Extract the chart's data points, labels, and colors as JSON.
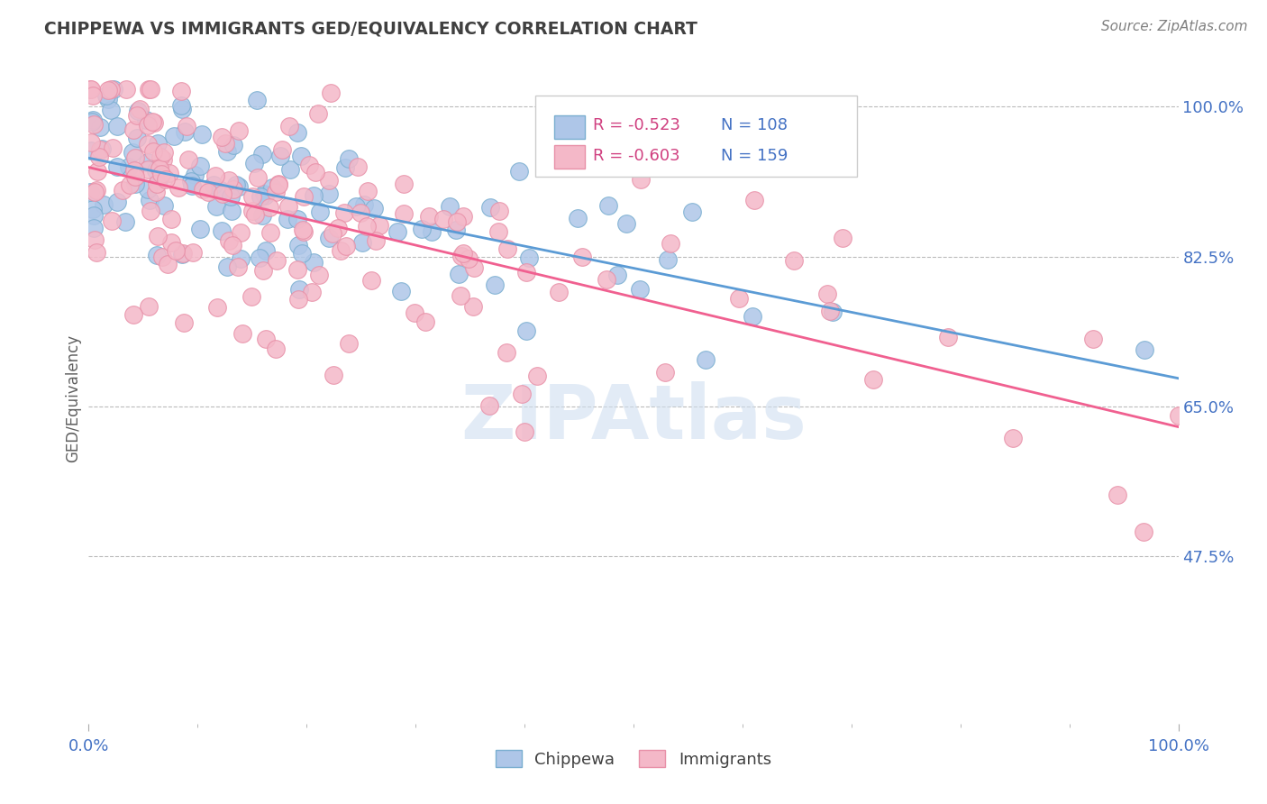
{
  "title": "CHIPPEWA VS IMMIGRANTS GED/EQUIVALENCY CORRELATION CHART",
  "source": "Source: ZipAtlas.com",
  "ylabel": "GED/Equivalency",
  "x_min": 0.0,
  "x_max": 1.0,
  "y_min": 0.28,
  "y_max": 1.04,
  "y_ticks": [
    0.475,
    0.65,
    0.825,
    1.0
  ],
  "y_tick_labels": [
    "47.5%",
    "65.0%",
    "82.5%",
    "100.0%"
  ],
  "chippewa_R": -0.523,
  "chippewa_N": 108,
  "immigrants_R": -0.603,
  "immigrants_N": 159,
  "chippewa_color": "#aec6e8",
  "immigrants_color": "#f4b8c8",
  "chippewa_edge_color": "#7aaed0",
  "immigrants_edge_color": "#e890a8",
  "chippewa_line_color": "#5b9bd5",
  "immigrants_line_color": "#f06090",
  "text_color": "#4472c4",
  "title_color": "#404040",
  "source_color": "#808080",
  "ylabel_color": "#606060",
  "background_color": "#ffffff",
  "grid_color": "#bbbbbb",
  "watermark_color": "#d0dff0",
  "legend_r_color": "#d04080",
  "legend_n_color": "#4472c4"
}
